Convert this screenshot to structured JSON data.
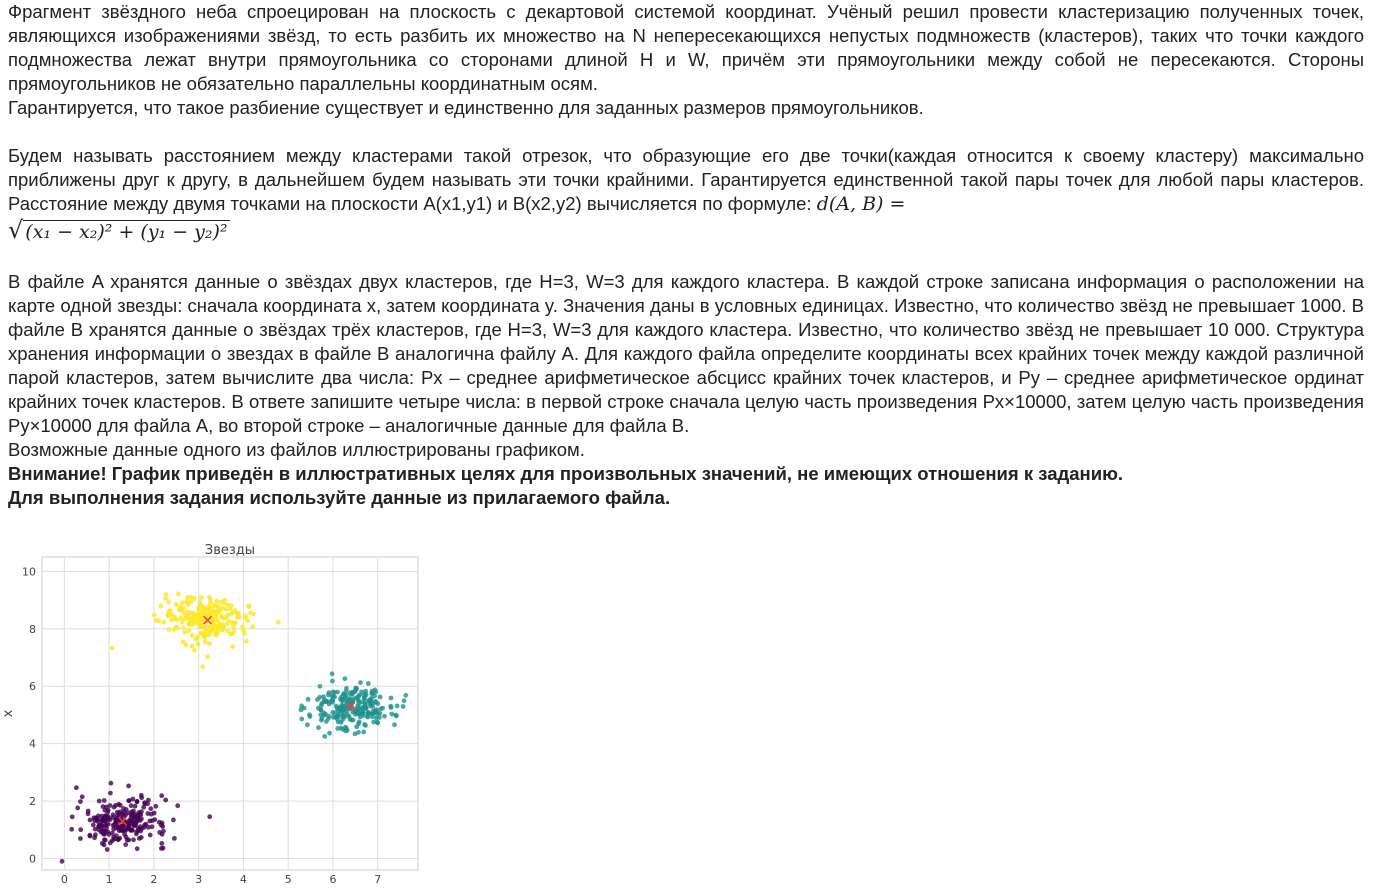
{
  "document": {
    "para1": "Фрагмент звёздного неба спроецирован на плоскость с декартовой системой координат. Учёный решил провести кластеризацию полученных точек, являющихся изображениями звёзд, то есть разбить их множество на N непересекающихся непустых подмножеств (кластеров), таких что точки каждого подмножества лежат внутри прямоугольника со сторонами длиной H и W, причём эти прямоугольники между собой не пересекаются. Стороны прямоугольников не обязательно параллельны координатным осям.",
    "para2": "Гарантируется, что такое разбиение существует и единственно для заданных размеров прямоугольников.",
    "para3": "Будем называть расстоянием между кластерами такой отрезок, что образующие его две точки(каждая относится к своему кластеру) максимально приближены друг к другу, в дальнейшем будем называть эти точки крайними. Гарантируется единственной такой пары точек для любой пары кластеров. Расстояние между двумя точками на плоскости A(x1,y1) и B(x2,y2) вычисляется по формуле:",
    "formula_lhs": "d(A, B) =",
    "formula_root": "(x₁ − x₂)² + (y₁ − y₂)²",
    "para4": "В файле A хранятся данные о звёздах двух кластеров, где H=3, W=3 для каждого кластера. В каждой строке записана информация о расположении на карте одной звезды: сначала координата x, затем координата y. Значения даны в условных единицах. Известно, что количество звёзд не превышает 1000. В файле B хранятся данные о звёздах трёх кластеров, где H=3, W=3 для каждого кластера. Известно, что количество звёзд не превышает 10 000. Структура хранения информации о звездах в файле B аналогична файлу A. Для каждого файла определите координаты всех крайних точек между каждой различной парой кластеров, затем вычислите два числа:  Px – среднее арифметическое абсцисс крайних точек кластеров, и  Py – среднее арифметическое ординат крайних точек кластеров. В ответе запишите четыре числа: в первой строке сначала целую часть произведения  Px×10000, затем целую часть произведения  Py×10000 для файла А, во второй строке – аналогичные данные для файла B.",
    "para5": "Возможные данные одного из файлов иллюстрированы графиком.",
    "warning1": "Внимание! График приведён в иллюстративных целях для произвольных значений, не имеющих отношения к заданию.",
    "warning2": "Для выполнения задания используйте данные из прилагаемого файла."
  },
  "chart_data": {
    "type": "scatter",
    "title": "Звезды",
    "xlabel": "",
    "ylabel": "x",
    "xlim": [
      -0.5,
      7.9
    ],
    "ylim": [
      -0.4,
      10.5
    ],
    "xticks": [
      0,
      1,
      2,
      3,
      4,
      5,
      6,
      7
    ],
    "yticks": [
      0,
      2,
      4,
      6,
      8,
      10
    ],
    "grid": true,
    "series": [
      {
        "color": "#440154",
        "center": [
          1.3,
          1.3
        ],
        "spread": [
          0.5,
          0.4
        ],
        "count": 240
      },
      {
        "color": "#fde725",
        "center": [
          3.2,
          8.3
        ],
        "spread": [
          0.5,
          0.4
        ],
        "count": 240
      },
      {
        "color": "#21918c",
        "center": [
          6.4,
          5.3
        ],
        "spread": [
          0.45,
          0.4
        ],
        "count": 240
      }
    ],
    "centroid_color": "#ff3b3b"
  }
}
